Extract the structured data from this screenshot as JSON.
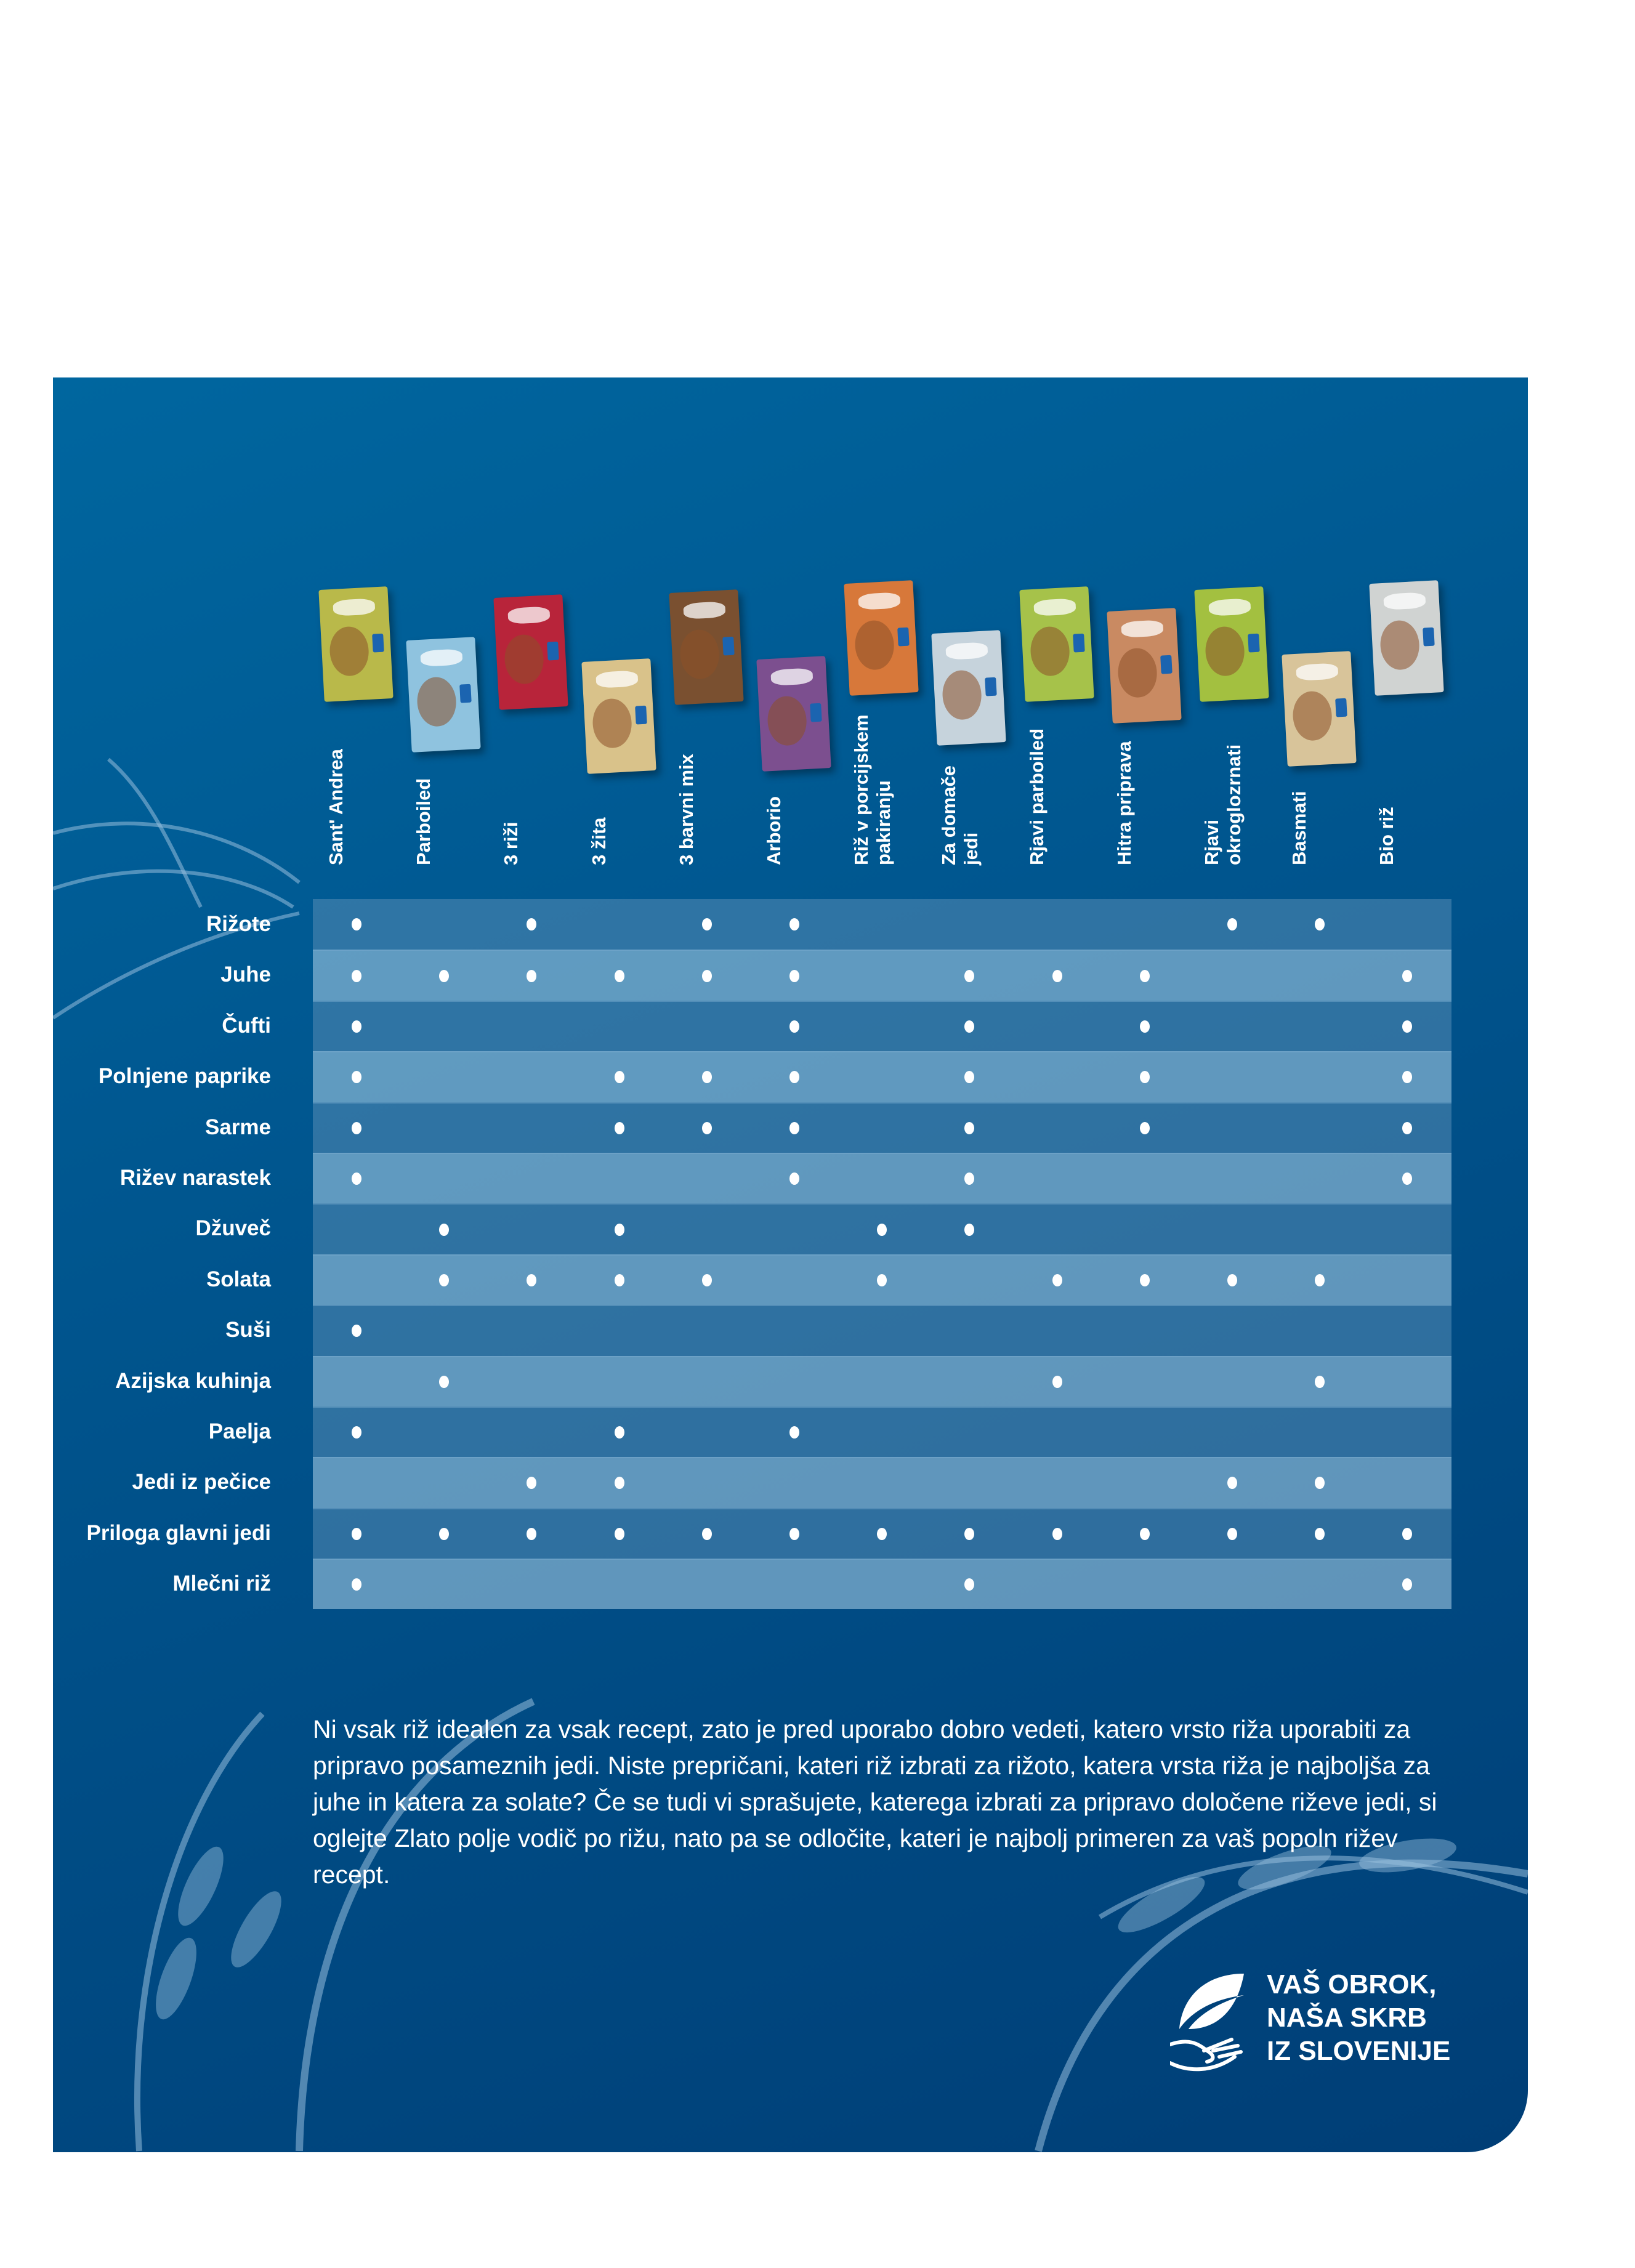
{
  "products": [
    {
      "name": "Sant' Andrea",
      "color": "#b9b94a"
    },
    {
      "name": "Parboiled",
      "color": "#8fc3df"
    },
    {
      "name": "3 riži",
      "color": "#b8243a"
    },
    {
      "name": "3 žita",
      "color": "#d9c28a"
    },
    {
      "name": "3 barvni mix",
      "color": "#7a5030"
    },
    {
      "name": "Arborio",
      "color": "#7c4f8f"
    },
    {
      "name": "Riž v porcijskem\npakiranju",
      "color": "#d7783a"
    },
    {
      "name": "Za domače\njedi",
      "color": "#c6d3dc"
    },
    {
      "name": "Rjavi parboiled",
      "color": "#a6c24a"
    },
    {
      "name": "Hitra priprava",
      "color": "#c98a62"
    },
    {
      "name": "Rjavi\nokroglozrnati",
      "color": "#a3c040"
    },
    {
      "name": "Basmati",
      "color": "#d8c49a"
    },
    {
      "name": "Bio riž",
      "color": "#d0d3d2"
    }
  ],
  "dishes": [
    {
      "label": "Rižote",
      "marks": [
        1,
        0,
        1,
        0,
        1,
        1,
        0,
        0,
        0,
        0,
        1,
        1,
        0
      ]
    },
    {
      "label": "Juhe",
      "marks": [
        1,
        1,
        1,
        1,
        1,
        1,
        0,
        1,
        1,
        1,
        0,
        0,
        1
      ]
    },
    {
      "label": "Čufti",
      "marks": [
        1,
        0,
        0,
        0,
        0,
        1,
        0,
        1,
        0,
        1,
        0,
        0,
        1
      ]
    },
    {
      "label": "Polnjene paprike",
      "marks": [
        1,
        0,
        0,
        1,
        1,
        1,
        0,
        1,
        0,
        1,
        0,
        0,
        1
      ]
    },
    {
      "label": "Sarme",
      "marks": [
        1,
        0,
        0,
        1,
        1,
        1,
        0,
        1,
        0,
        1,
        0,
        0,
        1
      ]
    },
    {
      "label": "Rižev narastek",
      "marks": [
        1,
        0,
        0,
        0,
        0,
        1,
        0,
        1,
        0,
        0,
        0,
        0,
        1
      ]
    },
    {
      "label": "Džuveč",
      "marks": [
        0,
        1,
        0,
        1,
        0,
        0,
        1,
        1,
        0,
        0,
        0,
        0,
        0
      ]
    },
    {
      "label": "Solata",
      "marks": [
        0,
        1,
        1,
        1,
        1,
        0,
        1,
        0,
        1,
        1,
        1,
        1,
        0
      ]
    },
    {
      "label": "Suši",
      "marks": [
        1,
        0,
        0,
        0,
        0,
        0,
        0,
        0,
        0,
        0,
        0,
        0,
        0
      ]
    },
    {
      "label": "Azijska kuhinja",
      "marks": [
        0,
        1,
        0,
        0,
        0,
        0,
        0,
        0,
        1,
        0,
        0,
        1,
        0
      ]
    },
    {
      "label": "Paelja",
      "marks": [
        1,
        0,
        0,
        1,
        0,
        1,
        0,
        0,
        0,
        0,
        0,
        0,
        0
      ]
    },
    {
      "label": "Jedi iz pečice",
      "marks": [
        0,
        0,
        1,
        1,
        0,
        0,
        0,
        0,
        0,
        0,
        1,
        1,
        0
      ]
    },
    {
      "label": "Priloga glavni jedi",
      "marks": [
        1,
        1,
        1,
        1,
        1,
        1,
        1,
        1,
        1,
        1,
        1,
        1,
        1
      ]
    },
    {
      "label": "Mlečni riž",
      "marks": [
        1,
        0,
        0,
        0,
        0,
        0,
        0,
        1,
        0,
        0,
        0,
        0,
        1
      ]
    }
  ],
  "paragraph": "Ni vsak riž idealen za vsak recept, zato je pred uporabo dobro vedeti, katero vrsto riža uporabiti za pripravo posameznih jedi. Niste prepričani, kateri riž izbrati za rižoto, katera vrsta riža je najboljša za juhe in katera za solate? Če se tudi vi sprašujete, katerega izbrati za pripravo določene riževe jedi, si oglejte Zlato polje vodič po rižu, nato pa se odločite, kateri je najbolj primeren za vaš popoln rižev recept.",
  "slogan": {
    "line1": "VAŠ OBROK,",
    "line2": "NAŠA SKRB",
    "line3": "IZ SLOVENIJE"
  },
  "colors": {
    "background": "#00558e",
    "dot": "#ffffff"
  }
}
